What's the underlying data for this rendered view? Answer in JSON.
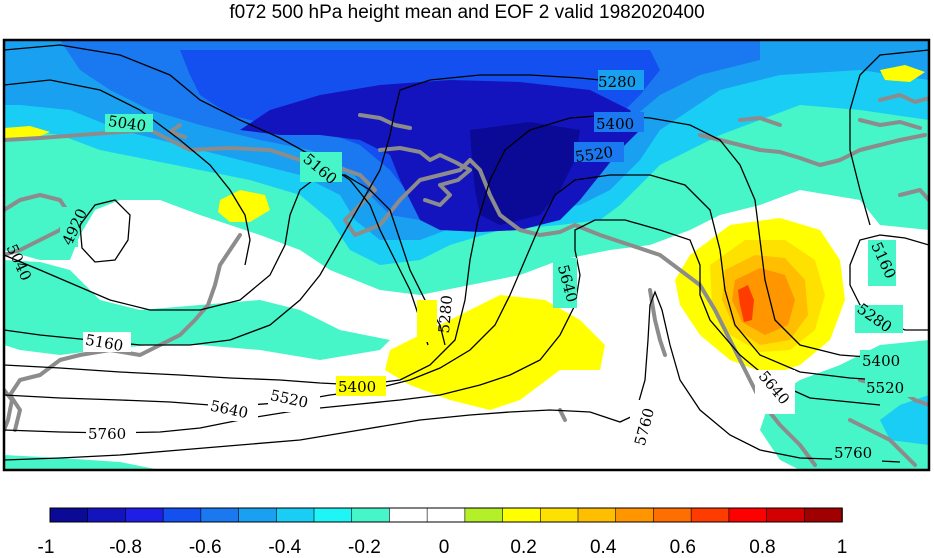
{
  "title": "f072 500 hPa height mean and EOF 2 valid 1982020400",
  "colors": {
    "coastline": "#8c8c8c",
    "contour": "#000000",
    "border": "#000000",
    "background": "#ffffff"
  },
  "contour_labels": [
    {
      "id": "c5040-a",
      "text": "5040"
    },
    {
      "id": "c4920",
      "text": "4920"
    },
    {
      "id": "c5040-b",
      "text": "5040"
    },
    {
      "id": "c5160-a",
      "text": "5160"
    },
    {
      "id": "c5160-b",
      "text": "5160"
    },
    {
      "id": "c5280-a",
      "text": "5280"
    },
    {
      "id": "c5280-b",
      "text": "5280"
    },
    {
      "id": "c5280-c",
      "text": "5280"
    },
    {
      "id": "c5400-a",
      "text": "5400"
    },
    {
      "id": "c5400-b",
      "text": "5400"
    },
    {
      "id": "c5400-c",
      "text": "5400"
    },
    {
      "id": "c5520-a",
      "text": "5520"
    },
    {
      "id": "c5520-b",
      "text": "5520"
    },
    {
      "id": "c5520-c",
      "text": "5520"
    },
    {
      "id": "c5640-a",
      "text": "5640"
    },
    {
      "id": "c5640-b",
      "text": "5640"
    },
    {
      "id": "c5640-c",
      "text": "5640"
    },
    {
      "id": "c5760-a",
      "text": "5760"
    },
    {
      "id": "c5760-b",
      "text": "5760"
    },
    {
      "id": "c5760-c",
      "text": "5760"
    },
    {
      "id": "c5160-c",
      "text": "5160"
    }
  ],
  "colorbar": {
    "colors": [
      "#0a0a96",
      "#1414be",
      "#1e1ee6",
      "#1450f0",
      "#1a78f0",
      "#1aa0f0",
      "#1acdf5",
      "#20f5f5",
      "#46f5c8",
      "#ffffff",
      "#ffffff",
      "#b4f028",
      "#ffff00",
      "#ffe100",
      "#ffbe00",
      "#ff9600",
      "#ff6e00",
      "#ff3c00",
      "#ff0000",
      "#d20000",
      "#a00000"
    ],
    "tick_labels": [
      "-1",
      "-0.8",
      "-0.6",
      "-0.4",
      "-0.2",
      "0",
      "0.2",
      "0.4",
      "0.6",
      "0.8",
      "1"
    ]
  }
}
